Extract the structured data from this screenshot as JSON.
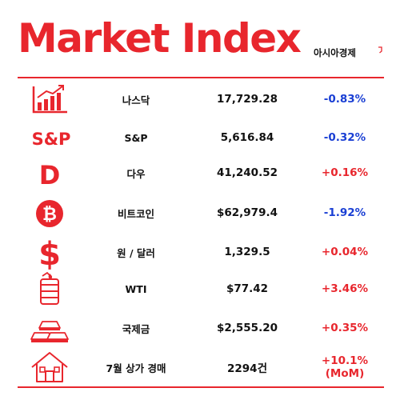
{
  "header": {
    "title": "Market Index",
    "brand": "아시아경제"
  },
  "colors": {
    "accent": "#e8262d",
    "down": "#1a3fd4",
    "up": "#e8262d"
  },
  "rows": [
    {
      "icon": "bar-chart-up-icon",
      "name": "나스닥",
      "value": "17,729.28",
      "change": "-0.83%",
      "direction": "down"
    },
    {
      "icon": "sp-logo-icon",
      "icon_text": "S&P",
      "name": "S&P",
      "value": "5,616.84",
      "change": "-0.32%",
      "direction": "down"
    },
    {
      "icon": "dow-d-icon",
      "icon_text": "D",
      "name": "다우",
      "value": "41,240.52",
      "change": "+0.16%",
      "direction": "up"
    },
    {
      "icon": "bitcoin-icon",
      "icon_text": "₿",
      "name": "비트코인",
      "value": "$62,979.4",
      "change": "-1.92%",
      "direction": "down"
    },
    {
      "icon": "dollar-sign-icon",
      "icon_text": "$",
      "name": "원 / 달러",
      "value": "1,329.5",
      "change": "+0.04%",
      "direction": "up"
    },
    {
      "icon": "oil-barrel-icon",
      "name": "WTI",
      "value": "$77.42",
      "change": "+3.46%",
      "direction": "up"
    },
    {
      "icon": "gold-bars-icon",
      "name": "국제금",
      "value": "$2,555.20",
      "change": "+0.35%",
      "direction": "up"
    },
    {
      "icon": "house-icon",
      "name": "7월 상가 경매",
      "value": "2294건",
      "change": "+10.1%\n(MoM)",
      "direction": "up"
    }
  ]
}
